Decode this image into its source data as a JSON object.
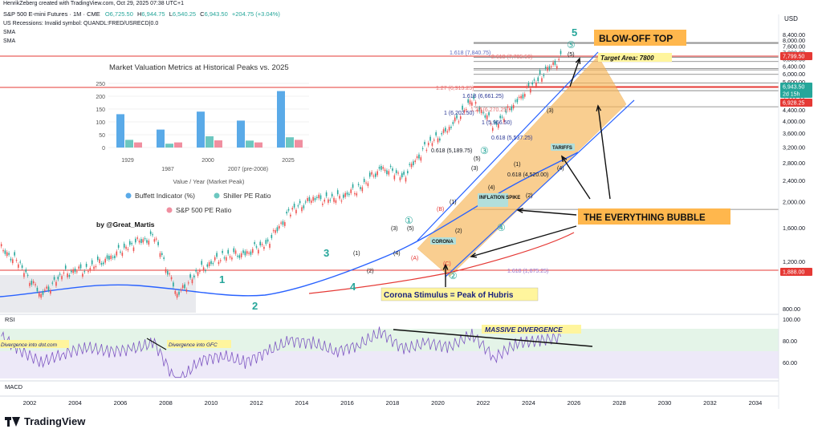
{
  "header": {
    "creator_line": "HenrikZeberg created with TradingView.com, Oct 29, 2025 07:38 UTC+1",
    "symbol_line": "S&P 500 E-mini Futures · 1M · CME",
    "ohlc": {
      "open_label": "O",
      "open": "6,725.50",
      "high_label": "H",
      "high": "6,944.75",
      "low_label": "L",
      "low": "6,540.25",
      "close_label": "C",
      "close": "6,943.50",
      "change": "+204.75 (+3.04%)"
    },
    "line2": "US Recessions: Invalid symbol: QUANDL:FRED/USRECD|0.0",
    "line3": "SMA",
    "line4": "SMA"
  },
  "brand": {
    "name": "TradingView"
  },
  "colors": {
    "up": "#26a69a",
    "down": "#ef5350",
    "ma_blue": "#2962ff",
    "ma_red": "#e53935",
    "channel": "#f7b455",
    "rsi": "#7e57c2",
    "annotation_teal": "#26a69a",
    "yellow_box": "#fff59d",
    "orange_box": "#ffb74d"
  },
  "chart_data": [
    {
      "type": "line",
      "title": "S&P 500 E-mini Futures · 1M · CME",
      "ylabel": "USD",
      "y_scale": "log",
      "ylim": [
        800,
        9000
      ],
      "x": [
        "2000",
        "2001",
        "2002",
        "2003",
        "2004",
        "2005",
        "2006",
        "2007",
        "2008",
        "2009",
        "2010",
        "2011",
        "2012",
        "2013",
        "2014",
        "2015",
        "2016",
        "2017",
        "2018",
        "2019",
        "2020",
        "2021",
        "2022",
        "2023",
        "2024",
        "2025"
      ],
      "x_ticks": [
        "2002",
        "2004",
        "2006",
        "2008",
        "2010",
        "2012",
        "2014",
        "2016",
        "2018",
        "2020",
        "2022",
        "2024",
        "2026",
        "2028",
        "2030",
        "2032",
        "2034"
      ],
      "y_ticks": [
        "8,400.00",
        "8,000.00",
        "7,600.00",
        "7,200.00",
        "6,800.00",
        "6,400.00",
        "6,000.00",
        "5,600.00",
        "5,200.00",
        "4,800.00",
        "4,400.00",
        "4,000.00",
        "3,600.00",
        "3,200.00",
        "2,800.00",
        "2,400.00",
        "2,000.00",
        "1,600.00",
        "1,200.00",
        "800.00"
      ],
      "series": [
        {
          "values": [
            1400,
            1180,
            900,
            1080,
            1130,
            1230,
            1400,
            1480,
            900,
            1110,
            1260,
            1280,
            1420,
            1840,
            2060,
            2040,
            2240,
            2670,
            2500,
            3230,
            3750,
            4760,
            3840,
            4770,
            5880,
            6943
          ]
        }
      ],
      "price_labels": [
        {
          "value": "7,799.50",
          "style": "red"
        },
        {
          "value": "6,943.50",
          "style": "teal"
        },
        {
          "value": "2d 15h",
          "style": "teal"
        },
        {
          "value": "6,928.25",
          "style": "red"
        },
        {
          "value": "1,888.00",
          "style": "red"
        }
      ],
      "fib_levels": [
        {
          "label": "1.618 (7,840.75)",
          "value": 7840.75
        },
        {
          "label": "2.618 (7,785.50)",
          "value": 7785.5
        },
        {
          "label": "1.27 (6,913.25)",
          "value": 6913.25
        },
        {
          "label": "1.618 (6,661.25)",
          "value": 6661.25
        },
        {
          "label": "1.27 (6,270.25)",
          "value": 6270.25
        },
        {
          "label": "1 (6,202.50)",
          "value": 6202.5
        },
        {
          "label": "1 (5,966.50)",
          "value": 5966.5
        },
        {
          "label": "0.618 (5,537.25)",
          "value": 5537.25
        },
        {
          "label": "0.618 (5,189.75)",
          "value": 5189.75
        },
        {
          "label": "0.618 (4,520.00)",
          "value": 4520
        },
        {
          "label": "1.618 (1,875.25)",
          "value": 1875.25
        }
      ],
      "annotations": {
        "waves_big": [
          "1",
          "2",
          "3",
          "4",
          "5"
        ],
        "wave_circled": [
          "①",
          "②",
          "③",
          "④",
          "⑤"
        ],
        "wave_paren": [
          "(1)",
          "(2)",
          "(3)",
          "(4)",
          "(5)"
        ],
        "wave_letters": [
          "(A)",
          "(B)",
          "(C)"
        ],
        "blowoff": "BLOW-OFF TOP",
        "target": "Target Area: 7800",
        "bubble": "THE EVERYTHING BUBBLE",
        "stimulus": "Corona Stimulus = Peak of Hubris",
        "divergence": "MASSIVE DIVERGENCE",
        "tag_corona": "CORONA",
        "tag_inflation": "INFLATION SPIKE",
        "tag_tariffs": "TARIFFS",
        "div_dotcom": "Divergence into dot.com",
        "div_gfc": "Divergence into GFC"
      }
    },
    {
      "type": "bar",
      "title": "Market Valuation Metrics at Historical Peaks vs. 2025",
      "xlabel": "Value / Year (Market Peak)",
      "categories": [
        "1929",
        "1987",
        "2000",
        "2007 (pre-2008)",
        "2025"
      ],
      "ylim": [
        0,
        250
      ],
      "y_ticks": [
        0,
        50,
        100,
        150,
        200,
        250
      ],
      "series": [
        {
          "name": "Buffett Indicator (%)",
          "color": "#5aaae8",
          "values": [
            130,
            70,
            140,
            105,
            220
          ]
        },
        {
          "name": "Shiller PE Ratio",
          "color": "#6cc7c0",
          "values": [
            30,
            15,
            44,
            27,
            40
          ]
        },
        {
          "name": "S&P 500 PE Ratio",
          "color": "#f08fa0",
          "values": [
            20,
            20,
            28,
            20,
            30
          ]
        }
      ],
      "credit": "by @Great_Martis"
    },
    {
      "type": "line",
      "title": "RSI",
      "ylim": [
        45,
        100
      ],
      "y_ticks": [
        "100.00",
        "80.00",
        "60.00"
      ],
      "series": [
        {
          "values": [
            88,
            72,
            60,
            68,
            74,
            70,
            72,
            78,
            40,
            62,
            66,
            60,
            70,
            80,
            78,
            70,
            76,
            88,
            72,
            78,
            74,
            86,
            64,
            78,
            80,
            84
          ]
        }
      ]
    },
    {
      "type": "line",
      "title": "MACD",
      "series": []
    }
  ]
}
